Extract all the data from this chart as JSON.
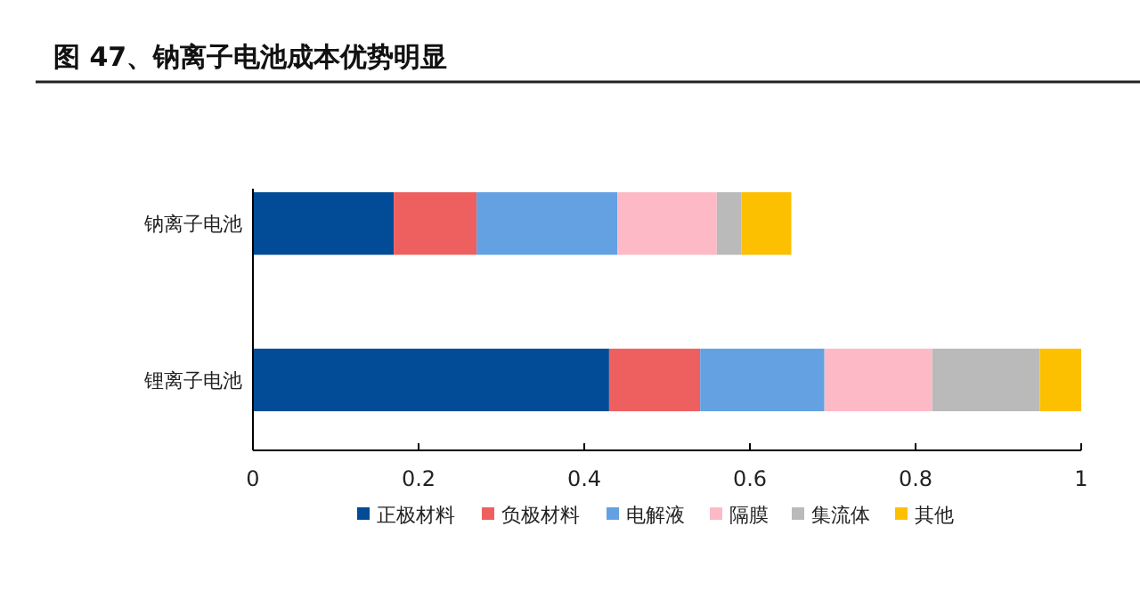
{
  "chart_data": {
    "type": "bar",
    "orientation": "horizontal",
    "stacked": true,
    "title": "图 47、钠离子电池成本优势明显",
    "categories": [
      "钠离子电池",
      "锂离子电池"
    ],
    "series": [
      {
        "name": "正极材料",
        "color": "#024b96",
        "values": [
          0.17,
          0.43
        ]
      },
      {
        "name": "负极材料",
        "color": "#ee6060",
        "values": [
          0.1,
          0.11
        ]
      },
      {
        "name": "电解液",
        "color": "#64a1e3",
        "values": [
          0.17,
          0.15
        ]
      },
      {
        "name": "隔膜",
        "color": "#fdbac6",
        "values": [
          0.12,
          0.13
        ]
      },
      {
        "name": "集流体",
        "color": "#bababa",
        "values": [
          0.03,
          0.13
        ]
      },
      {
        "name": "其他",
        "color": "#fdc000",
        "values": [
          0.06,
          0.05
        ]
      }
    ],
    "xlim": [
      0,
      1
    ],
    "xticks": [
      0,
      0.2,
      0.4,
      0.6,
      0.8,
      1
    ],
    "grid": false,
    "legend": "bottom"
  }
}
